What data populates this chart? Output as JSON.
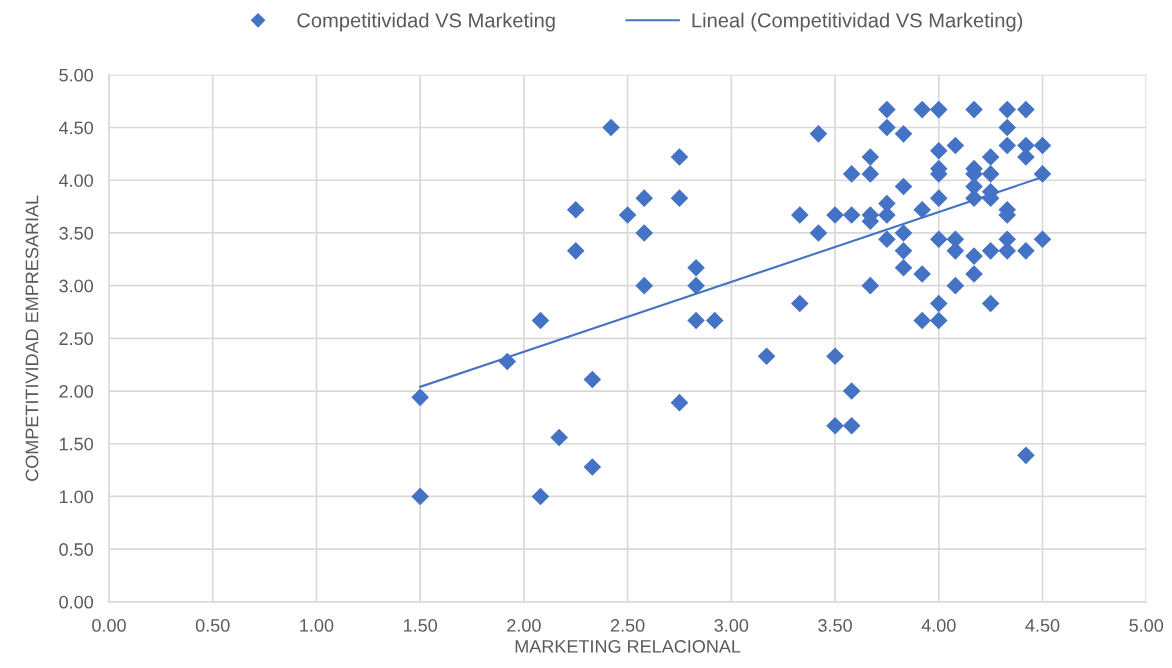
{
  "chart_data": {
    "type": "scatter",
    "xlabel": "MARKETING RELACIONAL",
    "ylabel": "COMPETITIVIDAD EMPRESARIAL",
    "xlim": [
      0,
      5
    ],
    "ylim": [
      0,
      5
    ],
    "xticks": [
      {
        "value": 0,
        "label": "0.00"
      },
      {
        "value": 0.5,
        "label": "0.50"
      },
      {
        "value": 1,
        "label": "1.00"
      },
      {
        "value": 1.5,
        "label": "1.50"
      },
      {
        "value": 2,
        "label": "2.00"
      },
      {
        "value": 2.5,
        "label": "2.50"
      },
      {
        "value": 3,
        "label": "3.00"
      },
      {
        "value": 3.5,
        "label": "3.50"
      },
      {
        "value": 4,
        "label": "4.00"
      },
      {
        "value": 4.5,
        "label": "4.50"
      },
      {
        "value": 5,
        "label": "5.00"
      }
    ],
    "yticks": [
      {
        "value": 0,
        "label": "0.00"
      },
      {
        "value": 0.5,
        "label": "0.50"
      },
      {
        "value": 1,
        "label": "1.00"
      },
      {
        "value": 1.5,
        "label": "1.50"
      },
      {
        "value": 2,
        "label": "2.00"
      },
      {
        "value": 2.5,
        "label": "2.50"
      },
      {
        "value": 3,
        "label": "3.00"
      },
      {
        "value": 3.5,
        "label": "3.50"
      },
      {
        "value": 4,
        "label": "4.00"
      },
      {
        "value": 4.5,
        "label": "4.50"
      },
      {
        "value": 5,
        "label": "5.00"
      }
    ],
    "grid": true,
    "legend": "top",
    "marker": "diamond",
    "line_style": "solid",
    "series": [
      {
        "name": "Competitividad VS Marketing",
        "color": "#4472c4",
        "x": [
          1.5,
          1.5,
          1.92,
          2.08,
          2.08,
          2.17,
          2.25,
          2.25,
          2.33,
          2.33,
          2.42,
          2.5,
          2.58,
          2.58,
          2.58,
          2.75,
          2.75,
          2.75,
          2.83,
          2.83,
          2.83,
          2.92,
          3.17,
          3.33,
          3.33,
          3.42,
          3.42,
          3.5,
          3.5,
          3.5,
          3.58,
          3.58,
          3.58,
          3.58,
          3.67,
          3.67,
          3.67,
          3.67,
          3.67,
          3.75,
          3.75,
          3.75,
          3.75,
          3.75,
          3.83,
          3.83,
          3.83,
          3.83,
          3.83,
          3.92,
          3.92,
          3.92,
          3.92,
          4.0,
          4.0,
          4.0,
          4.0,
          4.0,
          4.0,
          4.0,
          4.0,
          4.08,
          4.08,
          4.08,
          4.08,
          4.17,
          4.17,
          4.17,
          4.17,
          4.17,
          4.17,
          4.17,
          4.25,
          4.25,
          4.25,
          4.25,
          4.25,
          4.25,
          4.33,
          4.33,
          4.33,
          4.33,
          4.33,
          4.33,
          4.33,
          4.42,
          4.42,
          4.42,
          4.42,
          4.42,
          4.5,
          4.5,
          4.5
        ],
        "values": [
          1.94,
          1.0,
          2.28,
          2.67,
          1.0,
          1.56,
          3.72,
          3.33,
          2.11,
          1.28,
          4.5,
          3.67,
          3.83,
          3.5,
          3.0,
          4.22,
          3.83,
          1.89,
          3.17,
          3.0,
          2.67,
          2.67,
          2.33,
          3.67,
          2.83,
          4.44,
          3.5,
          3.67,
          2.33,
          1.67,
          4.06,
          3.67,
          2.0,
          1.67,
          4.22,
          4.06,
          3.67,
          3.61,
          3.0,
          4.67,
          4.5,
          3.78,
          3.67,
          3.44,
          4.44,
          3.94,
          3.5,
          3.33,
          3.17,
          4.67,
          3.72,
          3.11,
          2.67,
          4.67,
          4.28,
          4.11,
          4.06,
          3.83,
          3.44,
          2.83,
          2.67,
          4.33,
          3.44,
          3.33,
          3.0,
          4.67,
          4.11,
          4.06,
          3.94,
          3.83,
          3.28,
          3.11,
          4.22,
          4.06,
          3.89,
          3.83,
          3.33,
          2.83,
          4.67,
          4.5,
          4.33,
          3.72,
          3.67,
          3.44,
          3.33,
          4.67,
          4.33,
          4.22,
          3.33,
          1.39,
          4.33,
          4.06,
          3.44
        ]
      },
      {
        "name": "Lineal (Competitividad VS Marketing)",
        "type": "line",
        "marker": "none",
        "color": "#4472c4",
        "x": [
          1.5,
          4.5
        ],
        "values": [
          2.04,
          4.03
        ]
      }
    ]
  }
}
